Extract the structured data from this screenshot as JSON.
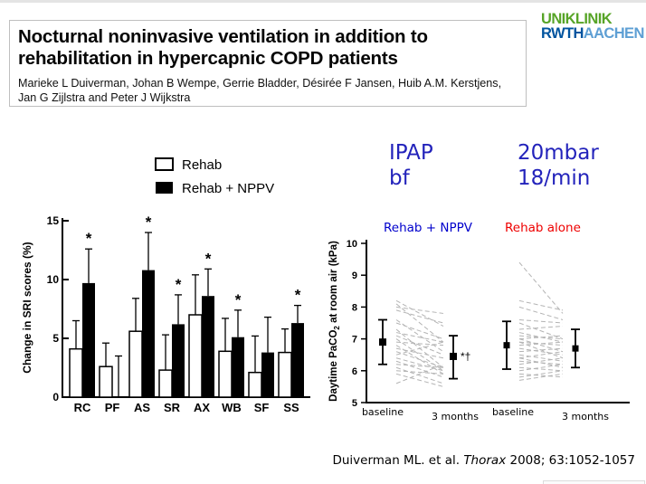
{
  "slide": {
    "title": "Nocturnal noninvasive ventilation in addition to rehabilitation in hypercapnic COPD patients",
    "authors": "Marieke L Duiverman, Johan B Wempe, Gerrie Bladder, Désirée F Jansen, Huib A.M. Kerstjens, Jan G Zijlstra and Peter J Wijkstra",
    "citation": {
      "pre": "Duiverman ML. et al. ",
      "journal": "Thorax",
      "post": " 2008; 63:1052-1057"
    }
  },
  "logo": {
    "line1": "UNIKLINIK",
    "rwth": "RWTH",
    "aachen": "AACHEN",
    "colors": {
      "green": "#57A427",
      "dark_blue": "#00549F",
      "light_blue": "#5E9FD4"
    }
  },
  "ventilator_settings": {
    "color": "#2323BB",
    "rows": [
      {
        "label": "IPAP",
        "value": "20mbar"
      },
      {
        "label": "bf",
        "value": "18/min"
      }
    ]
  },
  "group_labels": {
    "nppv": {
      "text": "Rehab + NPPV",
      "color": "#0000CC"
    },
    "alone": {
      "text": "Rehab alone",
      "color": "#EE0000"
    }
  },
  "chart_data": [
    {
      "type": "bar",
      "title": "",
      "xlabel": "",
      "ylabel": "Change in SRI scores (%)",
      "ylim": [
        0,
        15
      ],
      "yticks": [
        0,
        5,
        10,
        15
      ],
      "grid": false,
      "legend_position": "top",
      "categories": [
        "RC",
        "PF",
        "AS",
        "SR",
        "AX",
        "WB",
        "SF",
        "SS"
      ],
      "series": [
        {
          "name": "Rehab",
          "fill": "#ffffff",
          "values": [
            4.1,
            2.6,
            5.6,
            2.3,
            7.0,
            3.9,
            2.1,
            3.8
          ],
          "errors_top": [
            6.5,
            4.6,
            8.4,
            5.3,
            10.4,
            6.7,
            5.2,
            5.8
          ]
        },
        {
          "name": "Rehab + NPPV",
          "fill": "#000000",
          "values": [
            9.7,
            0.0,
            10.8,
            6.2,
            8.6,
            5.1,
            3.8,
            6.3
          ],
          "errors_top": [
            12.6,
            3.5,
            14.0,
            8.7,
            10.9,
            7.4,
            6.8,
            7.8
          ],
          "significant": [
            true,
            false,
            true,
            true,
            true,
            true,
            false,
            true
          ]
        }
      ]
    },
    {
      "type": "paired-scatter",
      "ylabel": "Daytime PaCO2 at room air (kPa)",
      "ylabel_parts": [
        "Daytime PaCO",
        "2",
        " at room air (kPa)"
      ],
      "ylim": [
        5,
        10
      ],
      "yticks": [
        5,
        6,
        7,
        8,
        9,
        10
      ],
      "grid": false,
      "x_categories": [
        "baseline",
        "3 months",
        "baseline",
        "3 months"
      ],
      "groups": [
        {
          "name": "Rehab + NPPV",
          "baseline_mean": 6.9,
          "baseline_ci": [
            6.2,
            7.6
          ],
          "followup_mean": 6.45,
          "followup_ci": [
            5.75,
            7.1
          ],
          "annotation": "*†",
          "individual": [
            [
              8.2,
              7.4
            ],
            [
              8.1,
              6.9
            ],
            [
              8.0,
              7.8
            ],
            [
              7.9,
              7.5
            ],
            [
              7.6,
              6.6
            ],
            [
              7.5,
              7.0
            ],
            [
              7.3,
              6.1
            ],
            [
              7.2,
              6.9
            ],
            [
              7.1,
              6.5
            ],
            [
              7.0,
              6.0
            ],
            [
              6.9,
              6.8
            ],
            [
              6.8,
              5.9
            ],
            [
              6.7,
              6.4
            ],
            [
              6.6,
              6.1
            ],
            [
              6.5,
              6.9
            ],
            [
              6.4,
              6.0
            ],
            [
              6.3,
              5.8
            ],
            [
              6.2,
              6.1
            ],
            [
              6.1,
              5.6
            ],
            [
              6.0,
              5.9
            ],
            [
              5.9,
              5.5
            ],
            [
              5.6,
              6.2
            ]
          ]
        },
        {
          "name": "Rehab alone",
          "baseline_mean": 6.8,
          "baseline_ci": [
            6.05,
            7.55
          ],
          "followup_mean": 6.7,
          "followup_ci": [
            6.1,
            7.3
          ],
          "annotation": "",
          "individual": [
            [
              9.4,
              7.8
            ],
            [
              8.2,
              7.9
            ],
            [
              8.0,
              7.6
            ],
            [
              7.6,
              7.5
            ],
            [
              7.5,
              7.0
            ],
            [
              7.3,
              7.4
            ],
            [
              7.2,
              6.9
            ],
            [
              7.1,
              7.0
            ],
            [
              7.0,
              7.1
            ],
            [
              7.0,
              6.6
            ],
            [
              6.9,
              6.8
            ],
            [
              6.9,
              6.4
            ],
            [
              6.8,
              6.9
            ],
            [
              6.7,
              6.5
            ],
            [
              6.6,
              6.7
            ],
            [
              6.5,
              6.3
            ],
            [
              6.4,
              6.6
            ],
            [
              6.4,
              6.1
            ],
            [
              6.3,
              6.2
            ],
            [
              6.2,
              6.4
            ],
            [
              6.1,
              6.0
            ],
            [
              6.0,
              6.2
            ],
            [
              5.9,
              5.8
            ],
            [
              5.8,
              6.0
            ],
            [
              5.7,
              5.9
            ]
          ]
        }
      ]
    }
  ]
}
